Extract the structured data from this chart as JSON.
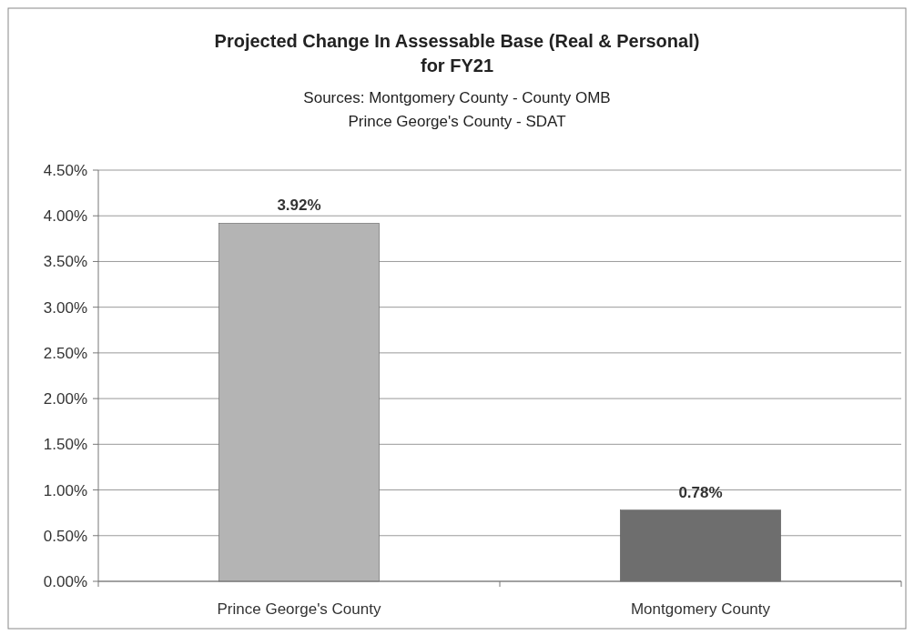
{
  "chart_data": {
    "type": "bar",
    "title": "Projected Change In Assessable Base (Real & Personal)\nfor FY21",
    "subtitle": "Sources: Montgomery County - County OMB\nPrince George's County - SDAT",
    "categories": [
      "Prince George's County",
      "Montgomery County"
    ],
    "values": [
      3.92,
      0.78
    ],
    "colors": [
      "#b4b4b4",
      "#6e6e6e"
    ],
    "value_labels": [
      "3.92%",
      "0.78%"
    ],
    "ylim": [
      0,
      4.5
    ],
    "yticks": [
      {
        "value": 0,
        "label": "0.00%"
      },
      {
        "value": 0.5,
        "label": "0.50%"
      },
      {
        "value": 1,
        "label": "1.00%"
      },
      {
        "value": 1.5,
        "label": "1.50%"
      },
      {
        "value": 2,
        "label": "2.00%"
      },
      {
        "value": 2.5,
        "label": "2.50%"
      },
      {
        "value": 3,
        "label": "3.00%"
      },
      {
        "value": 3.5,
        "label": "3.50%"
      },
      {
        "value": 4,
        "label": "4.00%"
      },
      {
        "value": 4.5,
        "label": "4.50%"
      }
    ],
    "grid": "y"
  }
}
